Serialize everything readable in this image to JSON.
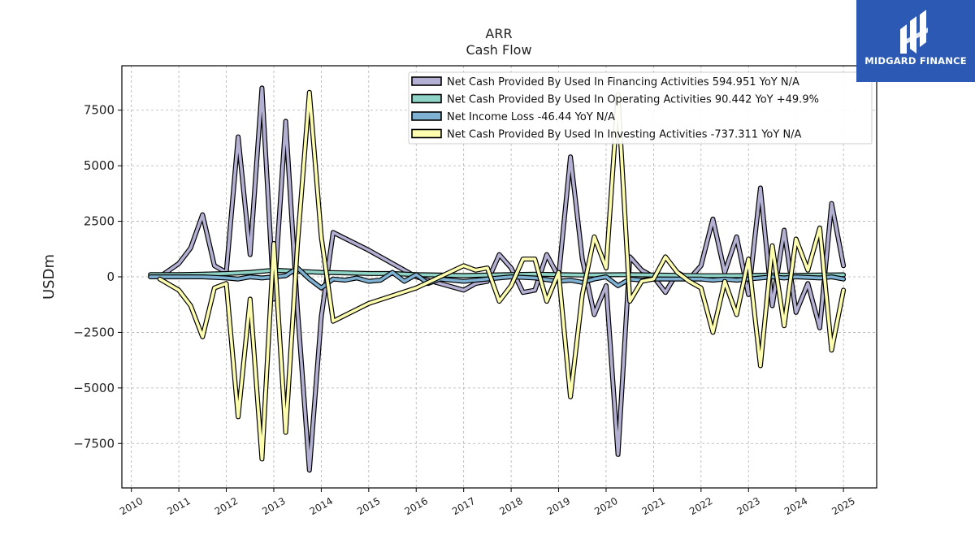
{
  "brand": {
    "name": "MIDGARD FINANCE",
    "bg_color": "#2b59b3"
  },
  "chart_data": {
    "type": "line",
    "title": "ARR",
    "subtitle": "Cash Flow",
    "xlabel": "",
    "ylabel": "USDm",
    "xlim": [
      2009.8,
      2025.7
    ],
    "ylim": [
      -9500,
      9500
    ],
    "x_ticks": [
      "2010",
      "2011",
      "2012",
      "2013",
      "2014",
      "2015",
      "2016",
      "2017",
      "2018",
      "2019",
      "2020",
      "2021",
      "2022",
      "2023",
      "2024",
      "2025"
    ],
    "y_ticks": [
      -7500,
      -5000,
      -2500,
      0,
      2500,
      5000,
      7500
    ],
    "y_tick_labels": [
      "−7500",
      "−5000",
      "−2500",
      "0",
      "2500",
      "5000",
      "7500"
    ],
    "grid": true,
    "legend_position": "top-right",
    "series": [
      {
        "name": "Net Cash Provided By Used In Financing Activities  594.951 YoY N/A",
        "color": "#b3b0d3",
        "points": [
          [
            2010.6,
            0
          ],
          [
            2011.0,
            600
          ],
          [
            2011.25,
            1300
          ],
          [
            2011.5,
            2800
          ],
          [
            2011.75,
            500
          ],
          [
            2012.0,
            200
          ],
          [
            2012.25,
            6300
          ],
          [
            2012.5,
            1000
          ],
          [
            2012.75,
            8500
          ],
          [
            2013.0,
            -1000
          ],
          [
            2013.25,
            7000
          ],
          [
            2013.5,
            -1500
          ],
          [
            2013.75,
            -8700
          ],
          [
            2014.0,
            -1800
          ],
          [
            2014.25,
            2000
          ],
          [
            2015.0,
            1200
          ],
          [
            2015.75,
            300
          ],
          [
            2016.0,
            0
          ],
          [
            2017.0,
            -600
          ],
          [
            2017.25,
            -300
          ],
          [
            2017.5,
            -200
          ],
          [
            2017.75,
            1000
          ],
          [
            2018.0,
            400
          ],
          [
            2018.25,
            -700
          ],
          [
            2018.5,
            -600
          ],
          [
            2018.75,
            1000
          ],
          [
            2019.0,
            0
          ],
          [
            2019.25,
            5400
          ],
          [
            2019.5,
            800
          ],
          [
            2019.75,
            -1700
          ],
          [
            2020.0,
            -400
          ],
          [
            2020.25,
            -8000
          ],
          [
            2020.5,
            900
          ],
          [
            2020.75,
            300
          ],
          [
            2021.0,
            0
          ],
          [
            2021.25,
            -700
          ],
          [
            2021.5,
            200
          ],
          [
            2021.75,
            -100
          ],
          [
            2022.0,
            500
          ],
          [
            2022.25,
            2600
          ],
          [
            2022.5,
            200
          ],
          [
            2022.75,
            1800
          ],
          [
            2023.0,
            -800
          ],
          [
            2023.25,
            4000
          ],
          [
            2023.5,
            -1300
          ],
          [
            2023.75,
            2100
          ],
          [
            2024.0,
            -1600
          ],
          [
            2024.25,
            -300
          ],
          [
            2024.5,
            -2300
          ],
          [
            2024.75,
            3300
          ],
          [
            2025.0,
            500
          ]
        ]
      },
      {
        "name": "Net Cash Provided By Used In Operating Activities  90.442 YoY +49.9%",
        "color": "#8fd3c6",
        "points": [
          [
            2010.4,
            100
          ],
          [
            2011.0,
            100
          ],
          [
            2011.5,
            120
          ],
          [
            2012.0,
            150
          ],
          [
            2012.5,
            200
          ],
          [
            2013.0,
            300
          ],
          [
            2013.5,
            250
          ],
          [
            2014.0,
            200
          ],
          [
            2014.5,
            180
          ],
          [
            2015.0,
            150
          ],
          [
            2015.5,
            150
          ],
          [
            2016.0,
            100
          ],
          [
            2016.5,
            80
          ],
          [
            2017.0,
            60
          ],
          [
            2017.5,
            80
          ],
          [
            2018.0,
            100
          ],
          [
            2018.5,
            120
          ],
          [
            2019.0,
            100
          ],
          [
            2019.5,
            80
          ],
          [
            2020.0,
            90
          ],
          [
            2020.5,
            100
          ],
          [
            2021.0,
            80
          ],
          [
            2021.5,
            70
          ],
          [
            2022.0,
            50
          ],
          [
            2022.5,
            50
          ],
          [
            2023.0,
            60
          ],
          [
            2023.5,
            80
          ],
          [
            2024.0,
            70
          ],
          [
            2024.5,
            80
          ],
          [
            2025.0,
            90
          ]
        ]
      },
      {
        "name": "Net Income Loss  -46.44 YoY N/A",
        "color": "#7eb1d2",
        "points": [
          [
            2010.4,
            0
          ],
          [
            2011.0,
            0
          ],
          [
            2011.5,
            0
          ],
          [
            2012.0,
            -50
          ],
          [
            2012.25,
            -100
          ],
          [
            2012.5,
            0
          ],
          [
            2012.75,
            -50
          ],
          [
            2013.0,
            0
          ],
          [
            2013.25,
            50
          ],
          [
            2013.5,
            400
          ],
          [
            2013.75,
            -100
          ],
          [
            2014.0,
            -500
          ],
          [
            2014.25,
            -100
          ],
          [
            2014.5,
            -150
          ],
          [
            2014.75,
            -50
          ],
          [
            2015.0,
            -200
          ],
          [
            2015.25,
            -150
          ],
          [
            2015.5,
            200
          ],
          [
            2015.75,
            -200
          ],
          [
            2016.0,
            100
          ],
          [
            2016.25,
            -300
          ],
          [
            2016.5,
            -100
          ],
          [
            2017.0,
            -200
          ],
          [
            2017.5,
            -100
          ],
          [
            2018.0,
            0
          ],
          [
            2018.5,
            -50
          ],
          [
            2019.0,
            -200
          ],
          [
            2019.25,
            -150
          ],
          [
            2019.5,
            -250
          ],
          [
            2019.75,
            -100
          ],
          [
            2020.0,
            0
          ],
          [
            2020.25,
            -400
          ],
          [
            2020.5,
            -100
          ],
          [
            2020.75,
            -150
          ],
          [
            2021.0,
            -100
          ],
          [
            2021.5,
            -100
          ],
          [
            2022.0,
            -100
          ],
          [
            2022.25,
            -150
          ],
          [
            2022.5,
            -100
          ],
          [
            2022.75,
            -150
          ],
          [
            2023.0,
            -100
          ],
          [
            2023.25,
            -50
          ],
          [
            2023.5,
            0
          ],
          [
            2023.75,
            -50
          ],
          [
            2024.0,
            0
          ],
          [
            2024.5,
            -50
          ],
          [
            2024.75,
            0
          ],
          [
            2025.0,
            -100
          ]
        ]
      },
      {
        "name": "Net Cash Provided By Used In Investing Activities  -737.311 YoY N/A",
        "color": "#fdfdb0",
        "points": [
          [
            2010.6,
            -100
          ],
          [
            2011.0,
            -600
          ],
          [
            2011.25,
            -1300
          ],
          [
            2011.5,
            -2700
          ],
          [
            2011.75,
            -500
          ],
          [
            2012.0,
            -300
          ],
          [
            2012.25,
            -6300
          ],
          [
            2012.5,
            -1000
          ],
          [
            2012.75,
            -8200
          ],
          [
            2013.0,
            1500
          ],
          [
            2013.25,
            -7000
          ],
          [
            2013.5,
            1500
          ],
          [
            2013.75,
            8300
          ],
          [
            2014.0,
            1800
          ],
          [
            2014.25,
            -2000
          ],
          [
            2015.0,
            -1200
          ],
          [
            2016.0,
            -500
          ],
          [
            2017.0,
            500
          ],
          [
            2017.25,
            300
          ],
          [
            2017.5,
            400
          ],
          [
            2017.75,
            -1100
          ],
          [
            2018.0,
            -400
          ],
          [
            2018.25,
            800
          ],
          [
            2018.5,
            800
          ],
          [
            2018.75,
            -1100
          ],
          [
            2019.0,
            200
          ],
          [
            2019.25,
            -5400
          ],
          [
            2019.5,
            -800
          ],
          [
            2019.75,
            1800
          ],
          [
            2020.0,
            400
          ],
          [
            2020.25,
            8200
          ],
          [
            2020.5,
            -1100
          ],
          [
            2020.75,
            -200
          ],
          [
            2021.0,
            -100
          ],
          [
            2021.25,
            900
          ],
          [
            2021.5,
            200
          ],
          [
            2021.75,
            -200
          ],
          [
            2022.0,
            -500
          ],
          [
            2022.25,
            -2500
          ],
          [
            2022.5,
            -200
          ],
          [
            2022.75,
            -1700
          ],
          [
            2023.0,
            800
          ],
          [
            2023.25,
            -4000
          ],
          [
            2023.5,
            1400
          ],
          [
            2023.75,
            -2200
          ],
          [
            2024.0,
            1700
          ],
          [
            2024.25,
            300
          ],
          [
            2024.5,
            2200
          ],
          [
            2024.75,
            -3300
          ],
          [
            2025.0,
            -600
          ]
        ]
      }
    ]
  }
}
